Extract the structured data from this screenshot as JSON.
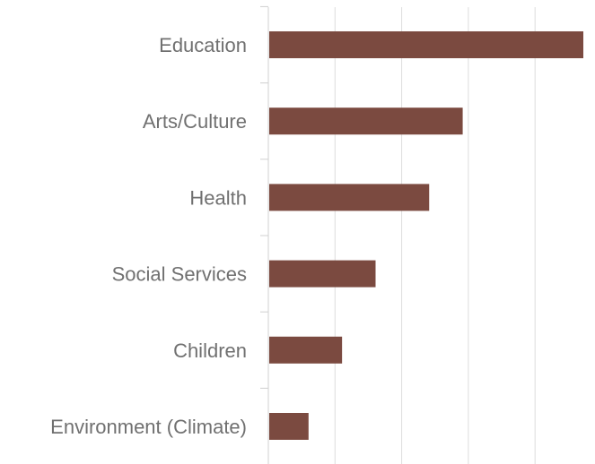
{
  "chart_data": {
    "type": "bar",
    "orientation": "horizontal",
    "categories": [
      "Education",
      "Arts/Culture",
      "Health",
      "Social Services",
      "Children",
      "Environment (Climate)"
    ],
    "values": [
      4.7,
      2.9,
      2.4,
      1.6,
      1.1,
      0.6
    ],
    "xlim": [
      0,
      4.7
    ],
    "grid": true,
    "colors": {
      "bar": "#7b4a40",
      "grid": "#dddddd",
      "axis": "#d0d0d0",
      "label": "#707070"
    }
  }
}
